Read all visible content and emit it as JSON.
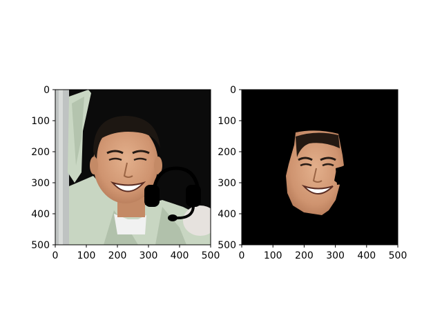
{
  "chart_data": [
    {
      "type": "image",
      "title": "",
      "xlabel": "",
      "ylabel": "",
      "xlim": [
        0,
        500
      ],
      "ylim": [
        500,
        0
      ],
      "xticks": [
        0,
        100,
        200,
        300,
        400,
        500
      ],
      "yticks": [
        0,
        100,
        200,
        300,
        400,
        500
      ],
      "content": "photo of smiling man with headset graphic overlay",
      "overlay": "headset-icon"
    },
    {
      "type": "image",
      "title": "",
      "xlabel": "",
      "ylabel": "",
      "xlim": [
        0,
        500
      ],
      "ylim": [
        500,
        0
      ],
      "xticks": [
        0,
        100,
        200,
        300,
        400,
        500
      ],
      "yticks": [
        0,
        100,
        200,
        300,
        400,
        500
      ],
      "content": "segmented face on black background"
    }
  ],
  "colors": {
    "background": "#ffffff",
    "mask_background": "#000000",
    "photo_bg": "#0a0a0a",
    "shirt": "#c8d6c2",
    "skin": "#d6a07a",
    "hair": "#1d1712",
    "headset": "#000000"
  }
}
